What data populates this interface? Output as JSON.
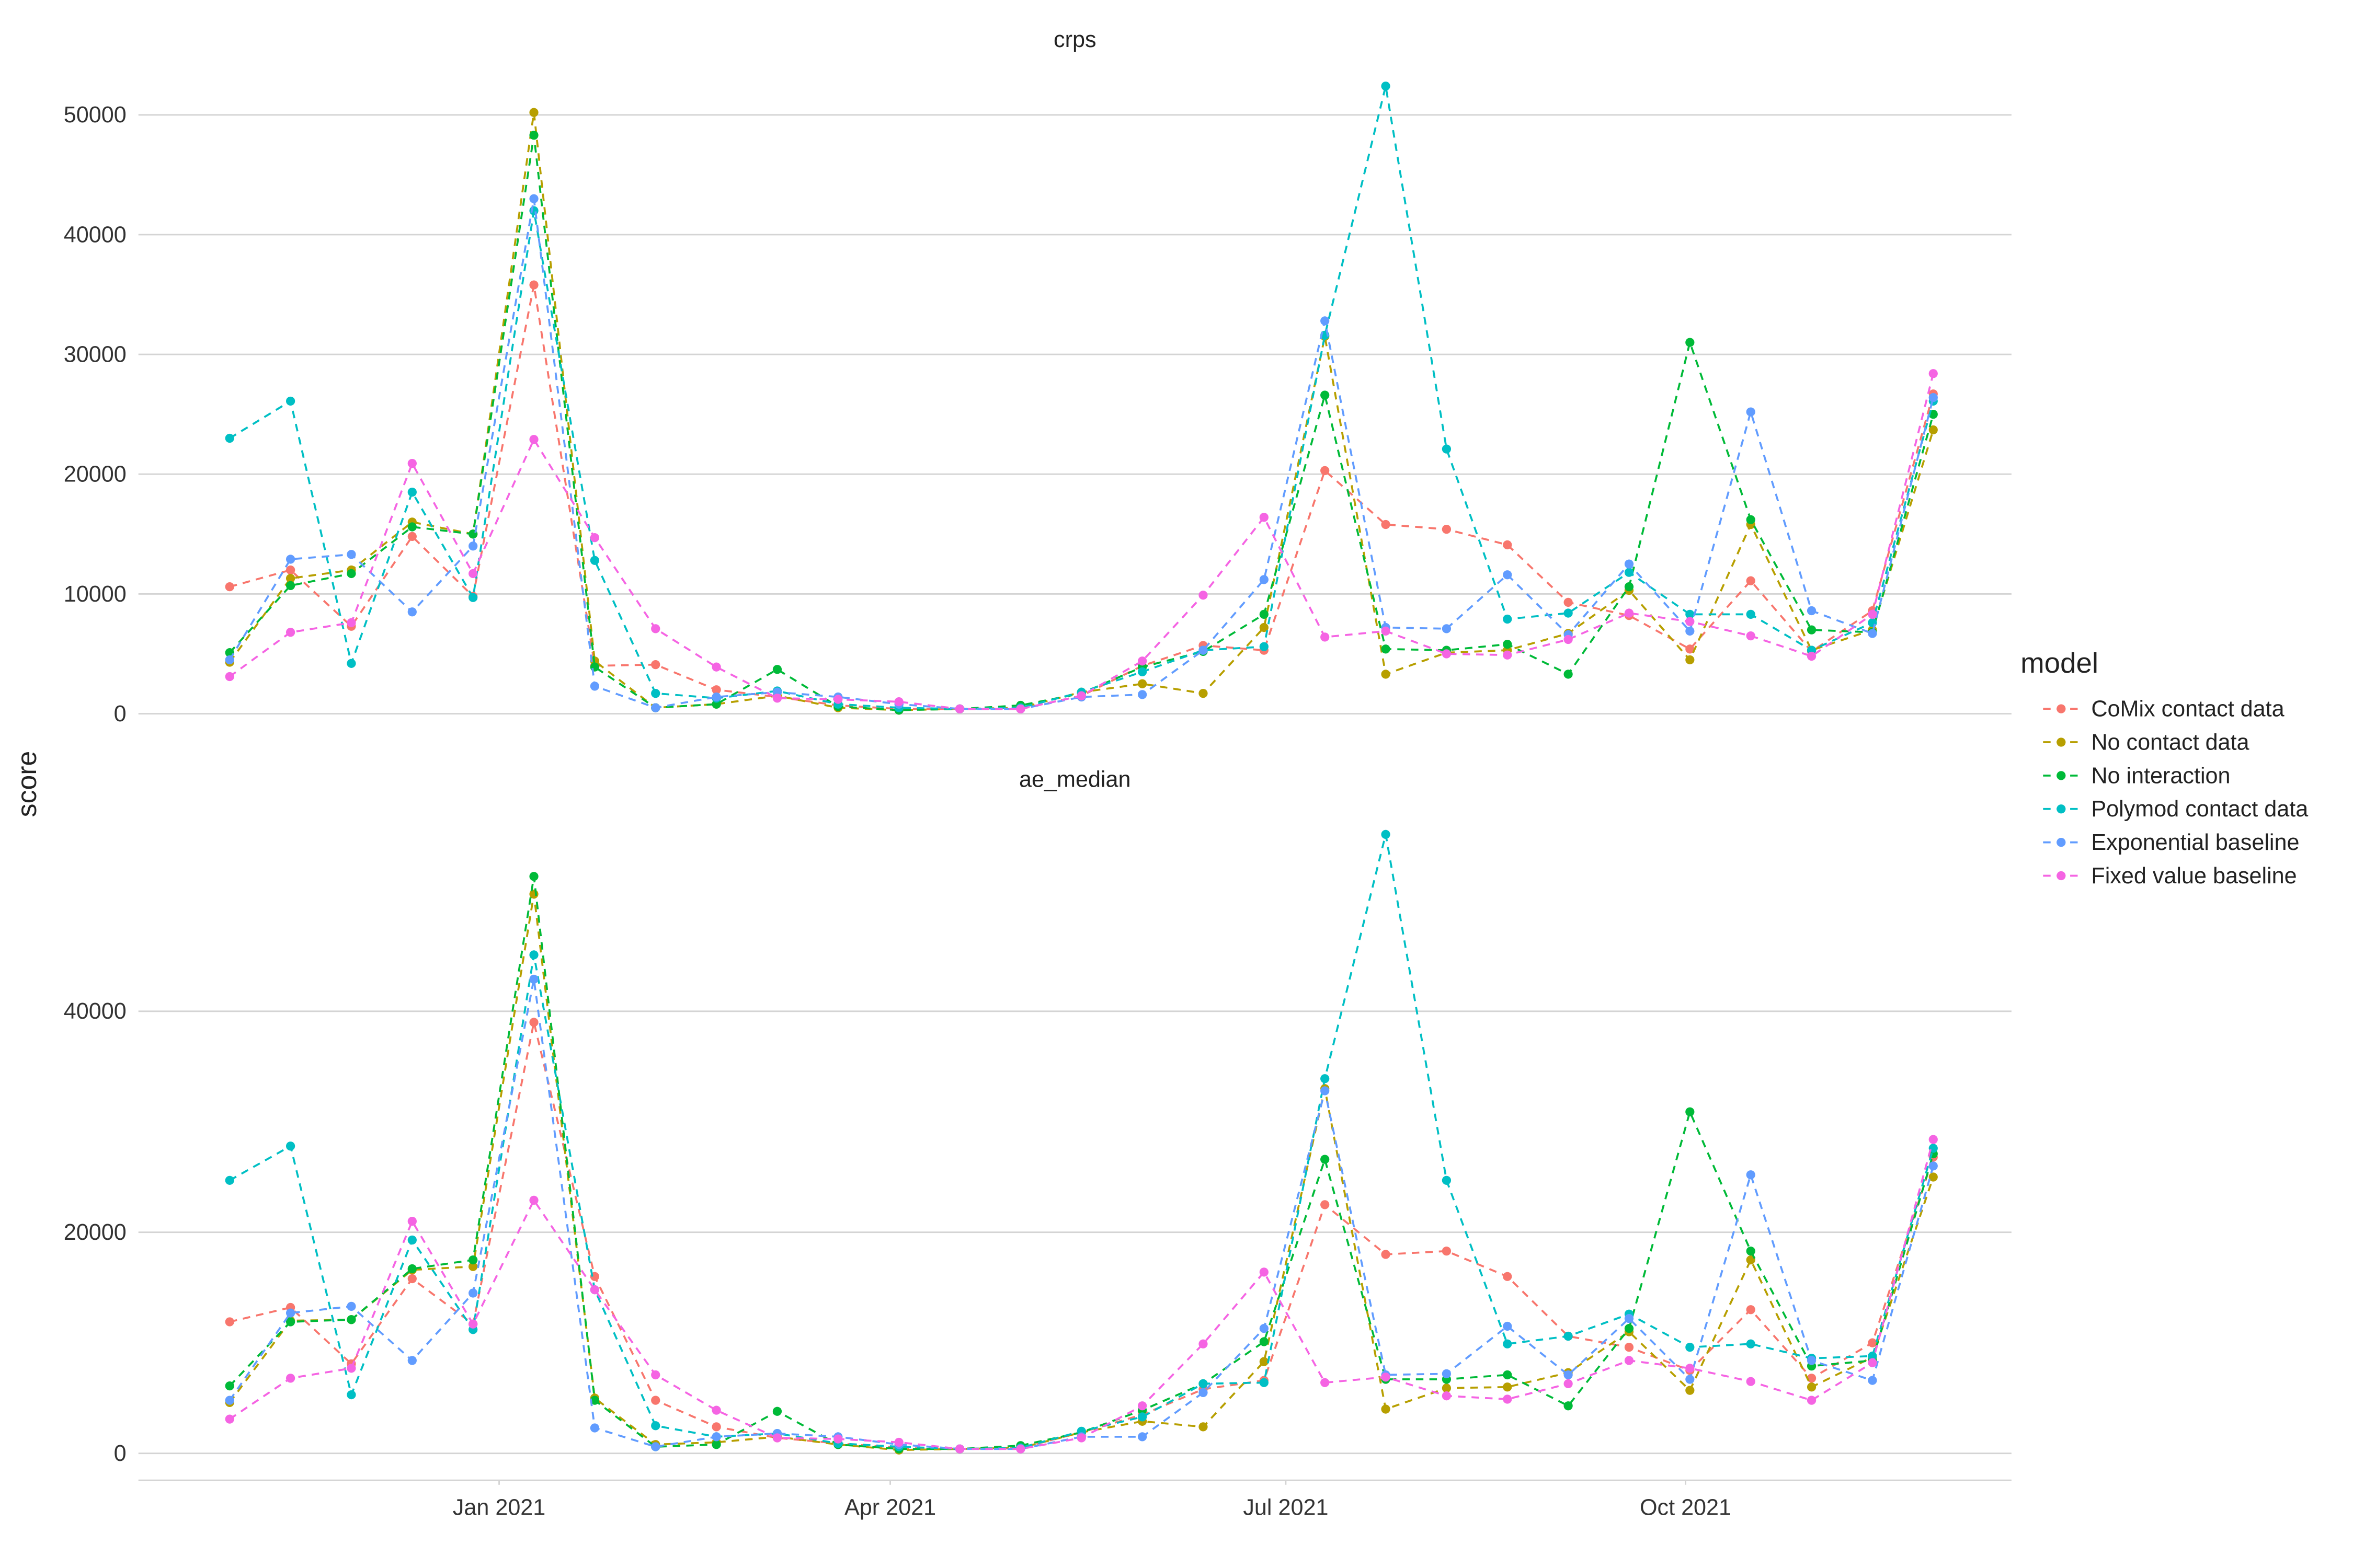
{
  "chart_data": [
    {
      "type": "line",
      "title": "crps",
      "ylabel": "score",
      "legend_title": "model",
      "x": [
        "2020-10-31",
        "2020-11-14",
        "2020-11-28",
        "2020-12-12",
        "2020-12-26",
        "2021-01-09",
        "2021-01-23",
        "2021-02-06",
        "2021-02-20",
        "2021-03-06",
        "2021-03-20",
        "2021-04-03",
        "2021-04-17",
        "2021-05-01",
        "2021-05-15",
        "2021-05-29",
        "2021-06-12",
        "2021-06-26",
        "2021-07-10",
        "2021-07-24",
        "2021-08-07",
        "2021-08-21",
        "2021-09-04",
        "2021-09-18",
        "2021-10-02",
        "2021-10-16",
        "2021-10-30",
        "2021-11-13",
        "2021-11-27"
      ],
      "xlim": [
        "2020-10-10",
        "2021-12-15"
      ],
      "ylim": [
        -2100,
        54400
      ],
      "yticks": [
        0,
        10000,
        20000,
        30000,
        40000,
        50000
      ],
      "grid": true,
      "series": [
        {
          "name": "CoMix contact data",
          "color": "#F8766D",
          "values": [
            10600,
            12000,
            7300,
            14800,
            9800,
            35800,
            4000,
            4100,
            2000,
            1400,
            700,
            400,
            400,
            400,
            1500,
            4000,
            5700,
            5300,
            20300,
            15800,
            15400,
            14100,
            9300,
            8200,
            5400,
            11100,
            5200,
            8600,
            26700
          ]
        },
        {
          "name": "No contact data",
          "color": "#B79F00",
          "values": [
            4300,
            11300,
            12000,
            16000,
            15000,
            50200,
            4400,
            500,
            800,
            1500,
            500,
            300,
            400,
            500,
            1800,
            2500,
            1700,
            7200,
            31500,
            3300,
            5100,
            5300,
            6700,
            10300,
            4500,
            15800,
            5300,
            7000,
            23700
          ]
        },
        {
          "name": "No interaction",
          "color": "#00BA38",
          "values": [
            5100,
            10700,
            11700,
            15600,
            15000,
            48300,
            3900,
            500,
            800,
            3700,
            600,
            300,
            400,
            700,
            1700,
            3900,
            5200,
            8300,
            26600,
            5400,
            5300,
            5800,
            3300,
            10600,
            31000,
            16200,
            7000,
            6800,
            25000
          ]
        },
        {
          "name": "Polymod contact data",
          "color": "#00BFC4",
          "values": [
            23000,
            26100,
            4200,
            18500,
            9700,
            42000,
            12800,
            1700,
            1300,
            1900,
            800,
            500,
            400,
            500,
            1800,
            3500,
            5300,
            5600,
            31600,
            52400,
            22100,
            7900,
            8400,
            11800,
            8300,
            8300,
            5300,
            7600,
            26100
          ]
        },
        {
          "name": "Exponential baseline",
          "color": "#619CFF",
          "values": [
            4500,
            12900,
            13300,
            8500,
            14000,
            43000,
            2300,
            500,
            1400,
            1800,
            1400,
            800,
            400,
            400,
            1400,
            1600,
            5300,
            11200,
            32800,
            7200,
            7100,
            11600,
            6600,
            12500,
            6900,
            25200,
            8600,
            6700,
            26400
          ]
        },
        {
          "name": "Fixed value baseline",
          "color": "#F564E3",
          "values": [
            3100,
            6800,
            7600,
            20900,
            11700,
            22900,
            14700,
            7100,
            3900,
            1300,
            1200,
            1000,
            400,
            400,
            1500,
            4400,
            9900,
            16400,
            6400,
            6900,
            5000,
            4900,
            6200,
            8400,
            7700,
            6500,
            4800,
            8300,
            28400
          ]
        }
      ]
    },
    {
      "type": "line",
      "title": "ae_median",
      "x": [
        "2020-10-31",
        "2020-11-14",
        "2020-11-28",
        "2020-12-12",
        "2020-12-26",
        "2021-01-09",
        "2021-01-23",
        "2021-02-06",
        "2021-02-20",
        "2021-03-06",
        "2021-03-20",
        "2021-04-03",
        "2021-04-17",
        "2021-05-01",
        "2021-05-15",
        "2021-05-29",
        "2021-06-12",
        "2021-06-26",
        "2021-07-10",
        "2021-07-24",
        "2021-08-07",
        "2021-08-21",
        "2021-09-04",
        "2021-09-18",
        "2021-10-02",
        "2021-10-16",
        "2021-10-30",
        "2021-11-13",
        "2021-11-27"
      ],
      "xlim": [
        "2020-10-10",
        "2021-12-15"
      ],
      "xticks": [
        {
          "value": "2021-01-01",
          "label": "Jan 2021"
        },
        {
          "value": "2021-04-01",
          "label": "Apr 2021"
        },
        {
          "value": "2021-07-01",
          "label": "Jul 2021"
        },
        {
          "value": "2021-10-01",
          "label": "Oct 2021"
        }
      ],
      "ylim": [
        -2300,
        59200
      ],
      "yticks": [
        0,
        20000,
        40000
      ],
      "grid": true,
      "series": [
        {
          "color": "#F8766D",
          "values": [
            11900,
            13200,
            8100,
            15800,
            11700,
            39000,
            16000,
            4800,
            2400,
            1400,
            900,
            500,
            400,
            500,
            1900,
            3500,
            5800,
            6600,
            22500,
            18000,
            18300,
            16000,
            10600,
            9600,
            7500,
            13000,
            6800,
            10000,
            26800
          ]
        },
        {
          "color": "#B79F00",
          "values": [
            4600,
            12000,
            12100,
            16600,
            16900,
            50600,
            5000,
            800,
            1000,
            1500,
            800,
            300,
            400,
            500,
            1900,
            2900,
            2400,
            8300,
            33000,
            4000,
            5900,
            6000,
            7300,
            11000,
            5700,
            17500,
            6000,
            8700,
            25000
          ]
        },
        {
          "color": "#00BA38",
          "values": [
            6100,
            11900,
            12100,
            16700,
            17500,
            52200,
            4800,
            600,
            800,
            3800,
            800,
            400,
            400,
            700,
            1900,
            3900,
            6300,
            10100,
            26600,
            6700,
            6700,
            7100,
            4300,
            11300,
            30900,
            18300,
            7900,
            8400,
            27100
          ]
        },
        {
          "color": "#00BFC4",
          "values": [
            24700,
            27800,
            5300,
            19300,
            11200,
            45100,
            14800,
            2500,
            1500,
            1800,
            900,
            600,
            400,
            500,
            2000,
            3300,
            6300,
            6400,
            33900,
            56000,
            24700,
            9900,
            10600,
            12600,
            9600,
            9900,
            8600,
            8800,
            27600
          ]
        },
        {
          "color": "#619CFF",
          "values": [
            4800,
            12700,
            13300,
            8400,
            14500,
            42900,
            2300,
            600,
            1500,
            1800,
            1500,
            800,
            400,
            400,
            1500,
            1500,
            5500,
            11300,
            32800,
            7100,
            7200,
            11500,
            7100,
            12200,
            6700,
            25200,
            8400,
            6600,
            26000
          ]
        },
        {
          "color": "#F564E3",
          "values": [
            3100,
            6800,
            7700,
            21000,
            11700,
            22900,
            14800,
            7100,
            3900,
            1400,
            1300,
            1000,
            400,
            400,
            1400,
            4300,
            9900,
            16400,
            6400,
            6900,
            5200,
            4900,
            6300,
            8400,
            7700,
            6500,
            4800,
            8200,
            28400
          ]
        }
      ]
    }
  ]
}
